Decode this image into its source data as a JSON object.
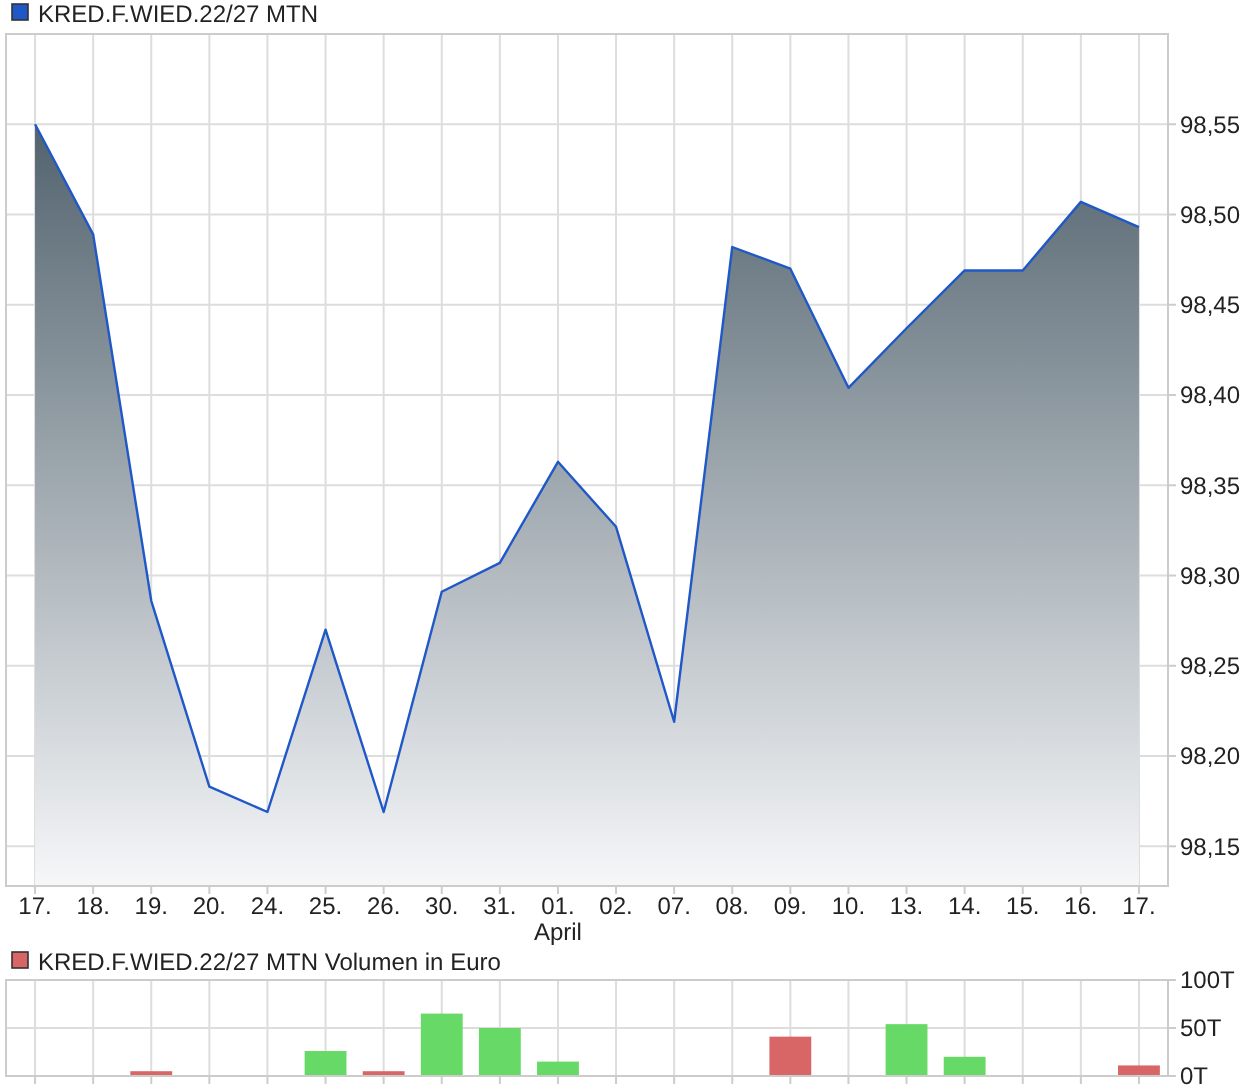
{
  "chart_data": [
    {
      "type": "area",
      "categories": [
        "17.",
        "18.",
        "19.",
        "20.",
        "24.",
        "25.",
        "26.",
        "30.",
        "31.",
        "01.",
        "02.",
        "07.",
        "08.",
        "09.",
        "10.",
        "13.",
        "14.",
        "15.",
        "16.",
        "17."
      ],
      "series": [
        {
          "name": "KRED.F.WIED.22/27 MTN",
          "color": "#2058c8",
          "values": [
            98.55,
            98.489,
            98.286,
            98.183,
            98.169,
            98.27,
            98.169,
            98.291,
            98.307,
            98.363,
            98.327,
            98.219,
            98.482,
            98.47,
            98.404,
            98.437,
            98.469,
            98.469,
            98.507,
            98.493
          ]
        }
      ],
      "ylim": [
        98.128,
        98.6
      ],
      "yticks": [
        {
          "value": 98.15,
          "label": "98,15"
        },
        {
          "value": 98.2,
          "label": "98,20"
        },
        {
          "value": 98.25,
          "label": "98,25"
        },
        {
          "value": 98.3,
          "label": "98,30"
        },
        {
          "value": 98.35,
          "label": "98,35"
        },
        {
          "value": 98.4,
          "label": "98,40"
        },
        {
          "value": 98.45,
          "label": "98,45"
        },
        {
          "value": 98.5,
          "label": "98,50"
        },
        {
          "value": 98.55,
          "label": "98,55"
        }
      ],
      "grid": true,
      "legend": "top left",
      "annotations": [
        "April"
      ]
    },
    {
      "type": "bar",
      "categories": [
        "17.",
        "18.",
        "19.",
        "20.",
        "24.",
        "25.",
        "26.",
        "30.",
        "31.",
        "01.",
        "02.",
        "07.",
        "08.",
        "09.",
        "10.",
        "13.",
        "14.",
        "15.",
        "16.",
        "17."
      ],
      "series": [
        {
          "name": "KRED.F.WIED.22/27 MTN Volumen in Euro",
          "color": "#d96666",
          "values": [
            null,
            null,
            5,
            null,
            null,
            26,
            5,
            65,
            50,
            15,
            null,
            null,
            null,
            41,
            null,
            54,
            20,
            null,
            null,
            11
          ],
          "colors": [
            null,
            null,
            "#d96666",
            null,
            null,
            "#66d966",
            "#d96666",
            "#66d966",
            "#66d966",
            "#66d966",
            null,
            null,
            null,
            "#d96666",
            null,
            "#66d966",
            "#66d966",
            null,
            null,
            "#d96666"
          ]
        }
      ],
      "ylim": [
        0,
        100
      ],
      "yticks": [
        {
          "value": 0,
          "label": "0T"
        },
        {
          "value": 50,
          "label": "50T"
        },
        {
          "value": 100,
          "label": "100T"
        }
      ],
      "grid": true,
      "legend": "top left",
      "tick_labels": "y"
    }
  ]
}
